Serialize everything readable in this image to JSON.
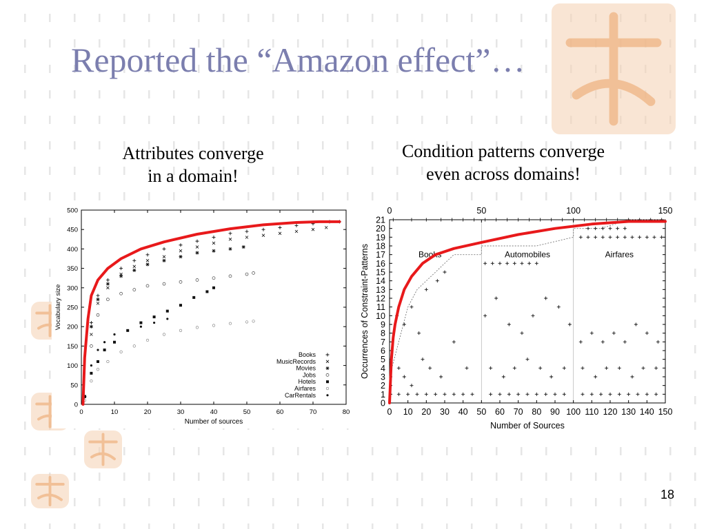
{
  "slide": {
    "title": "Reported the “Amazon effect”…",
    "left_caption": "Attributes converge\nin a domain!",
    "right_caption": "Condition patterns converge\neven across domains!",
    "page_number": "18"
  },
  "colors": {
    "title": "#7b7eae",
    "trend": "#e8191b",
    "seal": "#f4cfb0",
    "bg_marks": "#e6e6e6"
  },
  "chart_data": [
    {
      "type": "scatter",
      "xlabel": "Number of sources",
      "ylabel": "Vocabulary size",
      "xlim": [
        0,
        80
      ],
      "ylim": [
        0,
        500
      ],
      "xticks": [
        "0",
        "10",
        "20",
        "30",
        "40",
        "50",
        "60",
        "70",
        "80"
      ],
      "yticks": [
        "0",
        "50",
        "100",
        "150",
        "200",
        "250",
        "300",
        "350",
        "400",
        "450",
        "500"
      ],
      "legend_position": "bottom-right",
      "series": [
        {
          "name": "Books",
          "marker": "+",
          "x": [
            1,
            3,
            5,
            8,
            12,
            16,
            20,
            25,
            30,
            35,
            40,
            45,
            50,
            55,
            60,
            65,
            70,
            75,
            78
          ],
          "y": [
            20,
            210,
            280,
            320,
            350,
            370,
            385,
            400,
            410,
            420,
            430,
            440,
            445,
            450,
            455,
            460,
            465,
            470,
            470
          ]
        },
        {
          "name": "MusicRecords",
          "marker": "x",
          "x": [
            1,
            3,
            5,
            8,
            12,
            16,
            20,
            25,
            30,
            35,
            40,
            45,
            50,
            55,
            60,
            65,
            70,
            74
          ],
          "y": [
            20,
            180,
            260,
            300,
            335,
            355,
            370,
            380,
            395,
            405,
            415,
            425,
            430,
            435,
            440,
            445,
            450,
            455
          ]
        },
        {
          "name": "Movies",
          "marker": "*",
          "x": [
            1,
            3,
            5,
            8,
            12,
            16,
            20,
            25,
            30,
            35,
            40,
            45,
            49
          ],
          "y": [
            20,
            200,
            270,
            310,
            330,
            345,
            360,
            370,
            380,
            390,
            395,
            400,
            405
          ]
        },
        {
          "name": "Jobs",
          "marker": "o",
          "x": [
            1,
            3,
            5,
            8,
            12,
            16,
            20,
            25,
            30,
            35,
            40,
            45,
            50,
            52
          ],
          "y": [
            20,
            150,
            230,
            270,
            285,
            295,
            305,
            310,
            315,
            320,
            325,
            330,
            335,
            338
          ]
        },
        {
          "name": "Hotels",
          "marker": "s",
          "x": [
            1,
            3,
            5,
            7,
            10,
            14,
            18,
            22,
            26,
            30,
            34,
            38,
            40
          ],
          "y": [
            20,
            80,
            110,
            140,
            160,
            190,
            210,
            225,
            240,
            255,
            275,
            290,
            300
          ]
        },
        {
          "name": "Airfares",
          "marker": "c",
          "x": [
            1,
            3,
            5,
            8,
            12,
            16,
            20,
            25,
            30,
            35,
            40,
            45,
            50,
            52
          ],
          "y": [
            10,
            60,
            90,
            110,
            135,
            150,
            165,
            180,
            190,
            198,
            203,
            208,
            212,
            214
          ]
        },
        {
          "name": "CarRentals",
          "marker": "d",
          "x": [
            1,
            3,
            5,
            7,
            10,
            14,
            18,
            22,
            26
          ],
          "y": [
            20,
            100,
            140,
            160,
            180,
            190,
            200,
            210,
            220
          ]
        }
      ],
      "trend": {
        "x": [
          0.5,
          1,
          2,
          3,
          5,
          8,
          12,
          18,
          25,
          35,
          45,
          55,
          65,
          72,
          78
        ],
        "y": [
          0,
          120,
          220,
          280,
          320,
          350,
          375,
          400,
          418,
          438,
          452,
          462,
          468,
          470,
          470
        ]
      }
    },
    {
      "type": "scatter",
      "xlabel": "Number of Sources",
      "ylabel": "Occurrences of Constraint-Patterns",
      "xlim": [
        0,
        150
      ],
      "ylim": [
        0,
        21
      ],
      "xticks": [
        "0",
        "10",
        "20",
        "30",
        "40",
        "50",
        "60",
        "70",
        "80",
        "90",
        "100",
        "110",
        "120",
        "130",
        "140",
        "150"
      ],
      "top_ticks": [
        "0",
        "50",
        "100",
        "150"
      ],
      "yticks": [
        "0",
        "1",
        "2",
        "3",
        "4",
        "5",
        "6",
        "7",
        "8",
        "9",
        "10",
        "11",
        "12",
        "13",
        "14",
        "15",
        "16",
        "17",
        "18",
        "19",
        "20",
        "21"
      ],
      "segments": [
        "Books",
        "Automobiles",
        "Airfares"
      ],
      "segment_bounds": [
        0,
        50,
        100,
        150
      ],
      "series": [
        {
          "name": "",
          "marker": "+",
          "x": [
            5,
            10,
            15,
            20,
            25,
            30,
            35,
            40,
            45,
            55,
            60,
            65,
            70,
            75,
            80,
            85,
            90,
            95,
            105,
            110,
            115,
            120,
            125,
            130,
            135,
            140,
            145
          ],
          "y": [
            1,
            1,
            1,
            1,
            1,
            1,
            1,
            1,
            1,
            1,
            1,
            1,
            1,
            1,
            1,
            1,
            1,
            1,
            1,
            1,
            1,
            1,
            1,
            1,
            1,
            1,
            1
          ]
        },
        {
          "name": "",
          "marker": "+",
          "x": [
            5,
            8,
            12,
            18,
            22,
            28,
            35,
            42,
            55,
            62,
            68,
            75,
            82,
            88,
            95,
            105,
            112,
            118,
            125,
            132,
            138,
            145
          ],
          "y": [
            4,
            3,
            2,
            5,
            4,
            3,
            7,
            4,
            4,
            3,
            4,
            5,
            4,
            3,
            4,
            4,
            3,
            4,
            4,
            3,
            4,
            4
          ]
        },
        {
          "name": "",
          "marker": "+",
          "x": [
            4,
            8,
            12,
            16,
            20,
            26,
            30,
            52,
            58,
            65,
            72,
            78,
            85,
            92,
            98,
            104,
            110,
            116,
            122,
            128,
            134,
            140,
            146
          ],
          "y": [
            10,
            9,
            11,
            8,
            13,
            14,
            15,
            10,
            12,
            9,
            8,
            10,
            12,
            11,
            9,
            7,
            8,
            7,
            8,
            7,
            9,
            8,
            7
          ]
        },
        {
          "name": "",
          "marker": "+",
          "x": [
            2,
            12,
            20,
            28,
            34,
            40,
            46,
            52,
            58,
            64,
            70,
            76,
            82,
            88,
            94,
            100,
            106,
            112,
            118,
            124,
            130,
            136,
            142,
            148
          ],
          "y": [
            21,
            21,
            21,
            21,
            21,
            21,
            21,
            21,
            21,
            21,
            21,
            21,
            21,
            21,
            21,
            21,
            21,
            21,
            21,
            21,
            21,
            21,
            21,
            21
          ]
        },
        {
          "name": "",
          "marker": "+",
          "x": [
            52,
            56,
            60,
            64,
            68,
            72,
            76,
            80,
            104,
            108,
            112,
            116,
            120,
            124,
            128,
            132,
            136,
            140,
            144,
            148
          ],
          "y": [
            16,
            16,
            16,
            16,
            16,
            16,
            16,
            16,
            19,
            19,
            19,
            19,
            19,
            19,
            19,
            19,
            19,
            19,
            19,
            19
          ]
        },
        {
          "name": "",
          "marker": "+",
          "x": [
            108,
            112,
            116,
            120,
            124,
            128
          ],
          "y": [
            20,
            20,
            20,
            20,
            20,
            20
          ]
        }
      ],
      "step_line": {
        "x": [
          0,
          5,
          10,
          15,
          20,
          25,
          30,
          35,
          50,
          50,
          65,
          80,
          100,
          100,
          115,
          130,
          150
        ],
        "y": [
          3,
          7,
          11,
          13,
          14,
          15,
          16,
          17,
          17,
          18,
          18,
          18,
          19,
          20,
          20,
          21,
          21
        ]
      },
      "trend": {
        "x": [
          0,
          1,
          2,
          3,
          5,
          8,
          12,
          18,
          25,
          35,
          50,
          70,
          90,
          110,
          130,
          150
        ],
        "y": [
          0,
          5,
          7.5,
          9,
          11,
          13,
          14.5,
          16,
          17,
          17.7,
          18.4,
          19.3,
          20,
          20.5,
          20.8,
          20.8
        ]
      }
    }
  ]
}
